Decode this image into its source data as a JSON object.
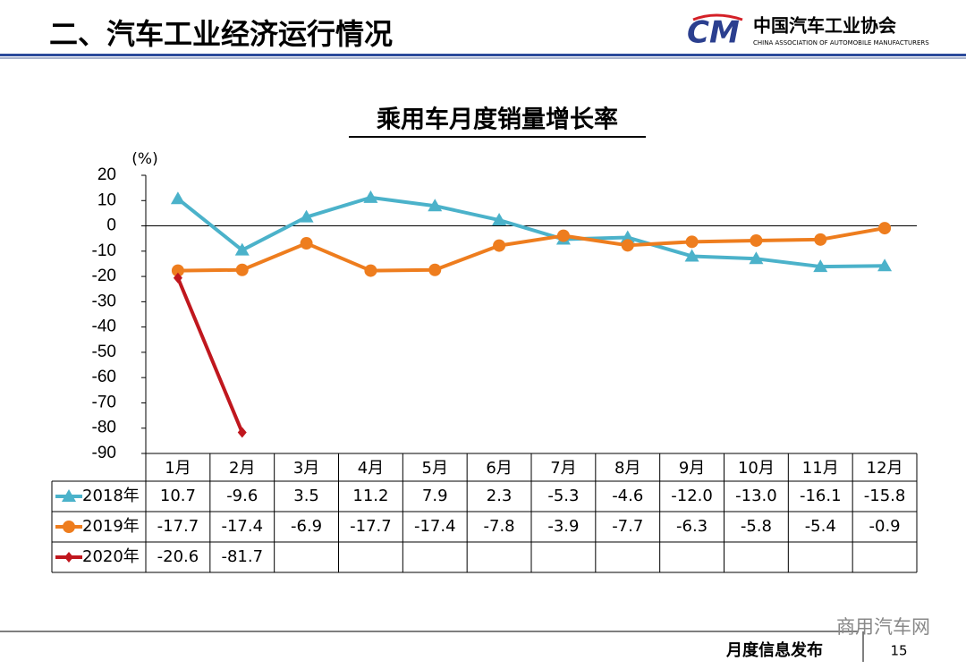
{
  "header": {
    "title": "二、汽车工业经济运行情况",
    "org": "中国汽车工业协会",
    "org_en": "CHINA ASSOCIATION OF AUTOMOBILE MANUFACTURERS"
  },
  "footer": {
    "section": "月度信息发布",
    "page": "15",
    "watermark": "商用汽车网"
  },
  "chart_data": {
    "type": "line",
    "title": "乘用车月度销量增长率",
    "y_unit": "(%)",
    "categories": [
      "1月",
      "2月",
      "3月",
      "4月",
      "5月",
      "6月",
      "7月",
      "8月",
      "9月",
      "10月",
      "11月",
      "12月"
    ],
    "series": [
      {
        "name": "2018年",
        "color": "#4bb2ca",
        "marker": "triangle",
        "values": [
          10.7,
          -9.6,
          3.5,
          11.2,
          7.9,
          2.3,
          -5.3,
          -4.6,
          -12.0,
          -13.0,
          -16.1,
          -15.8
        ],
        "value_labels": [
          "10.7",
          "-9.6",
          "3.5",
          "11.2",
          "7.9",
          "2.3",
          "-5.3",
          "-4.6",
          "-12.0",
          "-13.0",
          "-16.1",
          "-15.8"
        ]
      },
      {
        "name": "2019年",
        "color": "#ee7d1e",
        "marker": "circle",
        "values": [
          -17.7,
          -17.4,
          -6.9,
          -17.7,
          -17.4,
          -7.8,
          -3.9,
          -7.7,
          -6.3,
          -5.8,
          -5.4,
          -0.9
        ],
        "value_labels": [
          "-17.7",
          "-17.4",
          "-6.9",
          "-17.7",
          "-17.4",
          "-7.8",
          "-3.9",
          "-7.7",
          "-6.3",
          "-5.8",
          "-5.4",
          "-0.9"
        ]
      },
      {
        "name": "2020年",
        "color": "#c0171e",
        "marker": "diamond",
        "values": [
          -20.6,
          -81.7,
          null,
          null,
          null,
          null,
          null,
          null,
          null,
          null,
          null,
          null
        ],
        "value_labels": [
          "-20.6",
          "-81.7",
          null,
          null,
          null,
          null,
          null,
          null,
          null,
          null,
          null,
          null
        ]
      }
    ],
    "ylim": [
      -90,
      20
    ],
    "yticks": [
      20,
      10,
      0,
      -10,
      -20,
      -30,
      -40,
      -50,
      -60,
      -70,
      -80,
      -90
    ],
    "grid": false
  }
}
